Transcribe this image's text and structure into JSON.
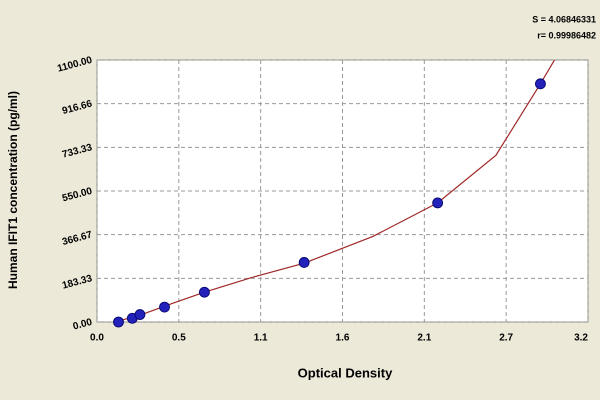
{
  "chart_data": {
    "type": "scatter",
    "x_label": "Optical Density",
    "y_label": "Human IFIT1 concentration (pg/ml)",
    "annotations": [
      "S = 4.06846331",
      "r= 0.99986482"
    ],
    "x": [
      0.14,
      0.23,
      0.28,
      0.44,
      0.7,
      1.35,
      2.22,
      2.89
    ],
    "values": [
      0,
      15.63,
      31.25,
      62.5,
      125,
      250,
      500,
      1000
    ],
    "color": "#2222bb",
    "fit": {
      "x": [
        0.12,
        0.3,
        0.5,
        0.7,
        1.0,
        1.35,
        1.8,
        2.22,
        2.6,
        2.89,
        3.0
      ],
      "values": [
        0,
        33,
        80,
        125,
        185,
        247,
        360,
        500,
        700,
        1000,
        1120
      ],
      "color": "#a02828"
    },
    "xlim": [
      0,
      3.2
    ],
    "xticks": [
      {
        "value": 0,
        "label": "0.0"
      },
      {
        "value": 0.5333,
        "label": "0.5"
      },
      {
        "value": 1.0667,
        "label": "1.1"
      },
      {
        "value": 1.6,
        "label": "1.6"
      },
      {
        "value": 2.1333,
        "label": "2.1"
      },
      {
        "value": 2.6667,
        "label": "2.7"
      },
      {
        "value": 3.2,
        "label": "3.2"
      }
    ],
    "ylim": [
      0,
      1100
    ],
    "yticks": [
      {
        "value": 0,
        "label": "0.00"
      },
      {
        "value": 183.33,
        "label": "183.33"
      },
      {
        "value": 366.67,
        "label": "366.67"
      },
      {
        "value": 550,
        "label": "550.00"
      },
      {
        "value": 733.33,
        "label": "733.33"
      },
      {
        "value": 916.66,
        "label": "916.66"
      },
      {
        "value": 1100,
        "label": "1100.00"
      }
    ],
    "grid": true
  }
}
